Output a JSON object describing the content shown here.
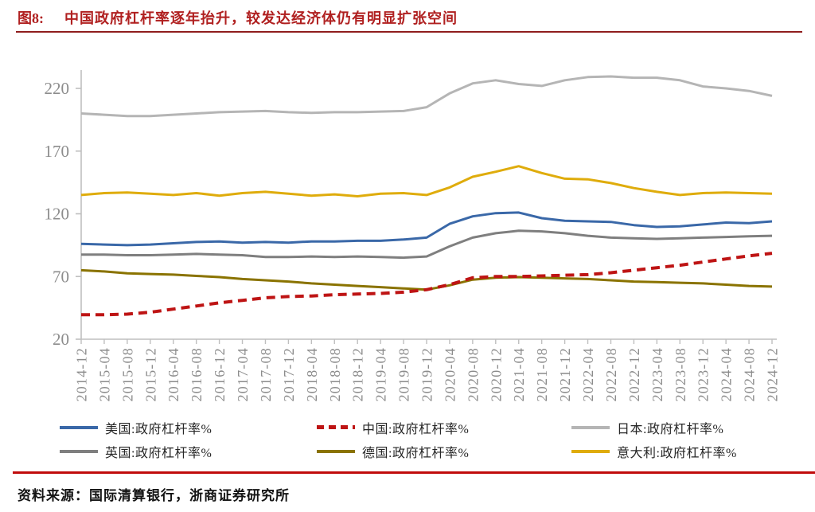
{
  "header": {
    "fig_label": "图8:",
    "title": "中国政府杠杆率逐年抬升，较发达经济体仍有明显扩张空间"
  },
  "footer": {
    "source": "资料来源：国际清算银行，浙商证券研究所"
  },
  "colors": {
    "title_red": "#B02020",
    "divider_dark_red": "#8F1D1D",
    "divider_bright_red": "#C00B0B",
    "axis_gray": "#BFBFBF",
    "tick_label_gray": "#8C8C8C"
  },
  "chart_data": {
    "type": "line",
    "title": "",
    "xlabel": "",
    "ylabel": "",
    "grid": false,
    "legend_position": "bottom",
    "ylim": [
      20,
      232
    ],
    "y_ticks": [
      20,
      70,
      120,
      170,
      220
    ],
    "categories": [
      "2014-12",
      "2015-04",
      "2015-08",
      "2015-12",
      "2016-04",
      "2016-08",
      "2016-12",
      "2017-04",
      "2017-08",
      "2017-12",
      "2018-04",
      "2018-08",
      "2018-12",
      "2019-04",
      "2019-08",
      "2019-12",
      "2020-04",
      "2020-08",
      "2020-12",
      "2021-04",
      "2021-08",
      "2021-12",
      "2022-04",
      "2022-08",
      "2022-12",
      "2023-04",
      "2023-08",
      "2023-12",
      "2024-04",
      "2024-08",
      "2024-12"
    ],
    "series": [
      {
        "name": "美国:政府杠杆率%",
        "color": "#3A68A8",
        "dash": null,
        "width": 3,
        "values": [
          96,
          95.5,
          95,
          95.5,
          96.5,
          97.5,
          98,
          97,
          97.5,
          97,
          98,
          98,
          98.5,
          98.5,
          99.5,
          101,
          112,
          118,
          120.5,
          121,
          116.5,
          114.5,
          114,
          113.5,
          111,
          109.5,
          110,
          111.5,
          113,
          112.5,
          114
        ]
      },
      {
        "name": "中国:政府杠杆率%",
        "color": "#BE1414",
        "dash": "11 7",
        "width": 4,
        "values": [
          39.5,
          39.5,
          40,
          41.5,
          44,
          46.5,
          49,
          51,
          53,
          54,
          54.5,
          55.5,
          56,
          56.5,
          57.5,
          59.5,
          63.5,
          69,
          70,
          70,
          70.5,
          71,
          71.5,
          73,
          75,
          77,
          79,
          81.5,
          84,
          86.5,
          88.5
        ]
      },
      {
        "name": "日本:政府杠杆率%",
        "color": "#B5B5B5",
        "dash": null,
        "width": 3,
        "values": [
          200,
          199,
          198,
          198,
          199,
          200,
          201,
          201.5,
          202,
          201,
          200.5,
          201,
          201,
          201.5,
          202,
          205,
          216,
          224,
          226.5,
          223.5,
          222,
          226.5,
          229,
          229.5,
          228.5,
          228.5,
          226.5,
          221.5,
          220,
          218,
          214
        ]
      },
      {
        "name": "英国:政府杠杆率%",
        "color": "#7F7F7F",
        "dash": null,
        "width": 3,
        "values": [
          87.5,
          87.5,
          87,
          87,
          87.5,
          88,
          87.5,
          87,
          85.5,
          85.5,
          86,
          85.5,
          86,
          85.5,
          85,
          86,
          94,
          101,
          104.5,
          106.5,
          106,
          104.5,
          102.5,
          101,
          100.5,
          100,
          100.5,
          101,
          101.5,
          102,
          102.5
        ]
      },
      {
        "name": "德国:政府杠杆率%",
        "color": "#8A7300",
        "dash": null,
        "width": 3,
        "values": [
          75,
          74,
          72.5,
          72,
          71.5,
          70.5,
          69.5,
          68,
          67,
          66,
          64.5,
          63.5,
          62.5,
          61.5,
          60.5,
          59.5,
          63,
          67.5,
          69,
          69.5,
          69,
          68.5,
          68,
          67,
          66,
          65.5,
          65,
          64.5,
          63.5,
          62.5,
          62
        ]
      },
      {
        "name": "意大利:政府杠杆率%",
        "color": "#DFAC0C",
        "dash": null,
        "width": 3,
        "values": [
          135,
          136.5,
          137,
          136,
          135,
          136.5,
          134.5,
          136.5,
          137.5,
          136,
          134.5,
          135.5,
          134,
          136,
          136.5,
          135,
          141,
          149.5,
          153.5,
          158,
          152.5,
          148,
          147.5,
          144.5,
          140.5,
          137.5,
          135,
          136.5,
          137,
          136.5,
          136
        ]
      }
    ]
  }
}
